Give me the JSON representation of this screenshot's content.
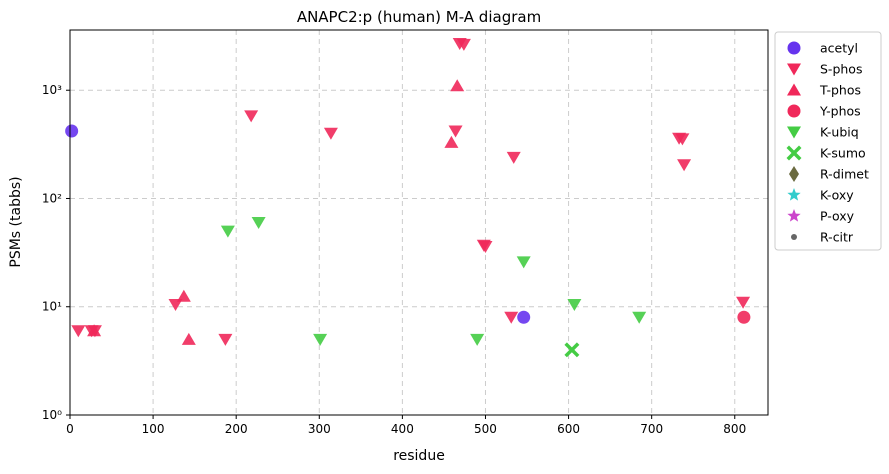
{
  "chart_data": {
    "type": "scatter",
    "title": "ANAPC2:p (human) M-A diagram",
    "xlabel": "residue",
    "ylabel": "PSMs (tabbs)",
    "xlim": [
      0,
      840
    ],
    "ylim": [
      1,
      3600
    ],
    "yscale": "log",
    "grid": true,
    "legend_position": "outside-right",
    "x_ticks": [
      0,
      100,
      200,
      300,
      400,
      500,
      600,
      700,
      800
    ],
    "x_tick_labels": [
      "0",
      "100",
      "200",
      "300",
      "400",
      "500",
      "600",
      "700",
      "800"
    ],
    "y_ticks": [
      1,
      10,
      100,
      1000
    ],
    "y_tick_labels": [
      "10⁰",
      "10¹",
      "10²",
      "10³"
    ],
    "series": [
      {
        "name": "acetyl",
        "marker": "circle",
        "color": "#6633ee",
        "points": [
          {
            "x": 2,
            "y": 420
          },
          {
            "x": 546,
            "y": 8
          }
        ]
      },
      {
        "name": "S-phos",
        "marker": "triangle-down",
        "color": "#f0285a",
        "points": [
          {
            "x": 10,
            "y": 6
          },
          {
            "x": 26,
            "y": 6
          },
          {
            "x": 30,
            "y": 6
          },
          {
            "x": 127,
            "y": 10.5
          },
          {
            "x": 187,
            "y": 5
          },
          {
            "x": 218,
            "y": 580
          },
          {
            "x": 314,
            "y": 400
          },
          {
            "x": 464,
            "y": 420
          },
          {
            "x": 469,
            "y": 2700
          },
          {
            "x": 474,
            "y": 2650
          },
          {
            "x": 498,
            "y": 37
          },
          {
            "x": 500,
            "y": 36
          },
          {
            "x": 531,
            "y": 8
          },
          {
            "x": 534,
            "y": 240
          },
          {
            "x": 733,
            "y": 360
          },
          {
            "x": 737,
            "y": 355
          },
          {
            "x": 739,
            "y": 205
          },
          {
            "x": 810,
            "y": 11
          }
        ]
      },
      {
        "name": "T-phos",
        "marker": "triangle-up",
        "color": "#f0285a",
        "points": [
          {
            "x": 29,
            "y": 6
          },
          {
            "x": 137,
            "y": 12.5
          },
          {
            "x": 143,
            "y": 5
          },
          {
            "x": 459,
            "y": 330
          },
          {
            "x": 466,
            "y": 1100
          }
        ]
      },
      {
        "name": "Y-phos",
        "marker": "circle",
        "color": "#f0285a",
        "points": [
          {
            "x": 811,
            "y": 8
          }
        ]
      },
      {
        "name": "K-ubiq",
        "marker": "triangle-down",
        "color": "#44cc44",
        "points": [
          {
            "x": 190,
            "y": 50
          },
          {
            "x": 227,
            "y": 60
          },
          {
            "x": 301,
            "y": 5
          },
          {
            "x": 490,
            "y": 5
          },
          {
            "x": 546,
            "y": 26
          },
          {
            "x": 607,
            "y": 10.5
          },
          {
            "x": 685,
            "y": 8
          }
        ]
      },
      {
        "name": "K-sumo",
        "marker": "x",
        "color": "#44cc44",
        "points": [
          {
            "x": 604,
            "y": 4
          }
        ]
      },
      {
        "name": "R-dimet",
        "marker": "diamond",
        "color": "#6b6b40",
        "points": []
      },
      {
        "name": "K-oxy",
        "marker": "star",
        "color": "#33cccc",
        "points": []
      },
      {
        "name": "P-oxy",
        "marker": "star",
        "color": "#cc44cc",
        "points": []
      },
      {
        "name": "R-citr",
        "marker": "dot",
        "color": "#666666",
        "points": []
      }
    ]
  }
}
